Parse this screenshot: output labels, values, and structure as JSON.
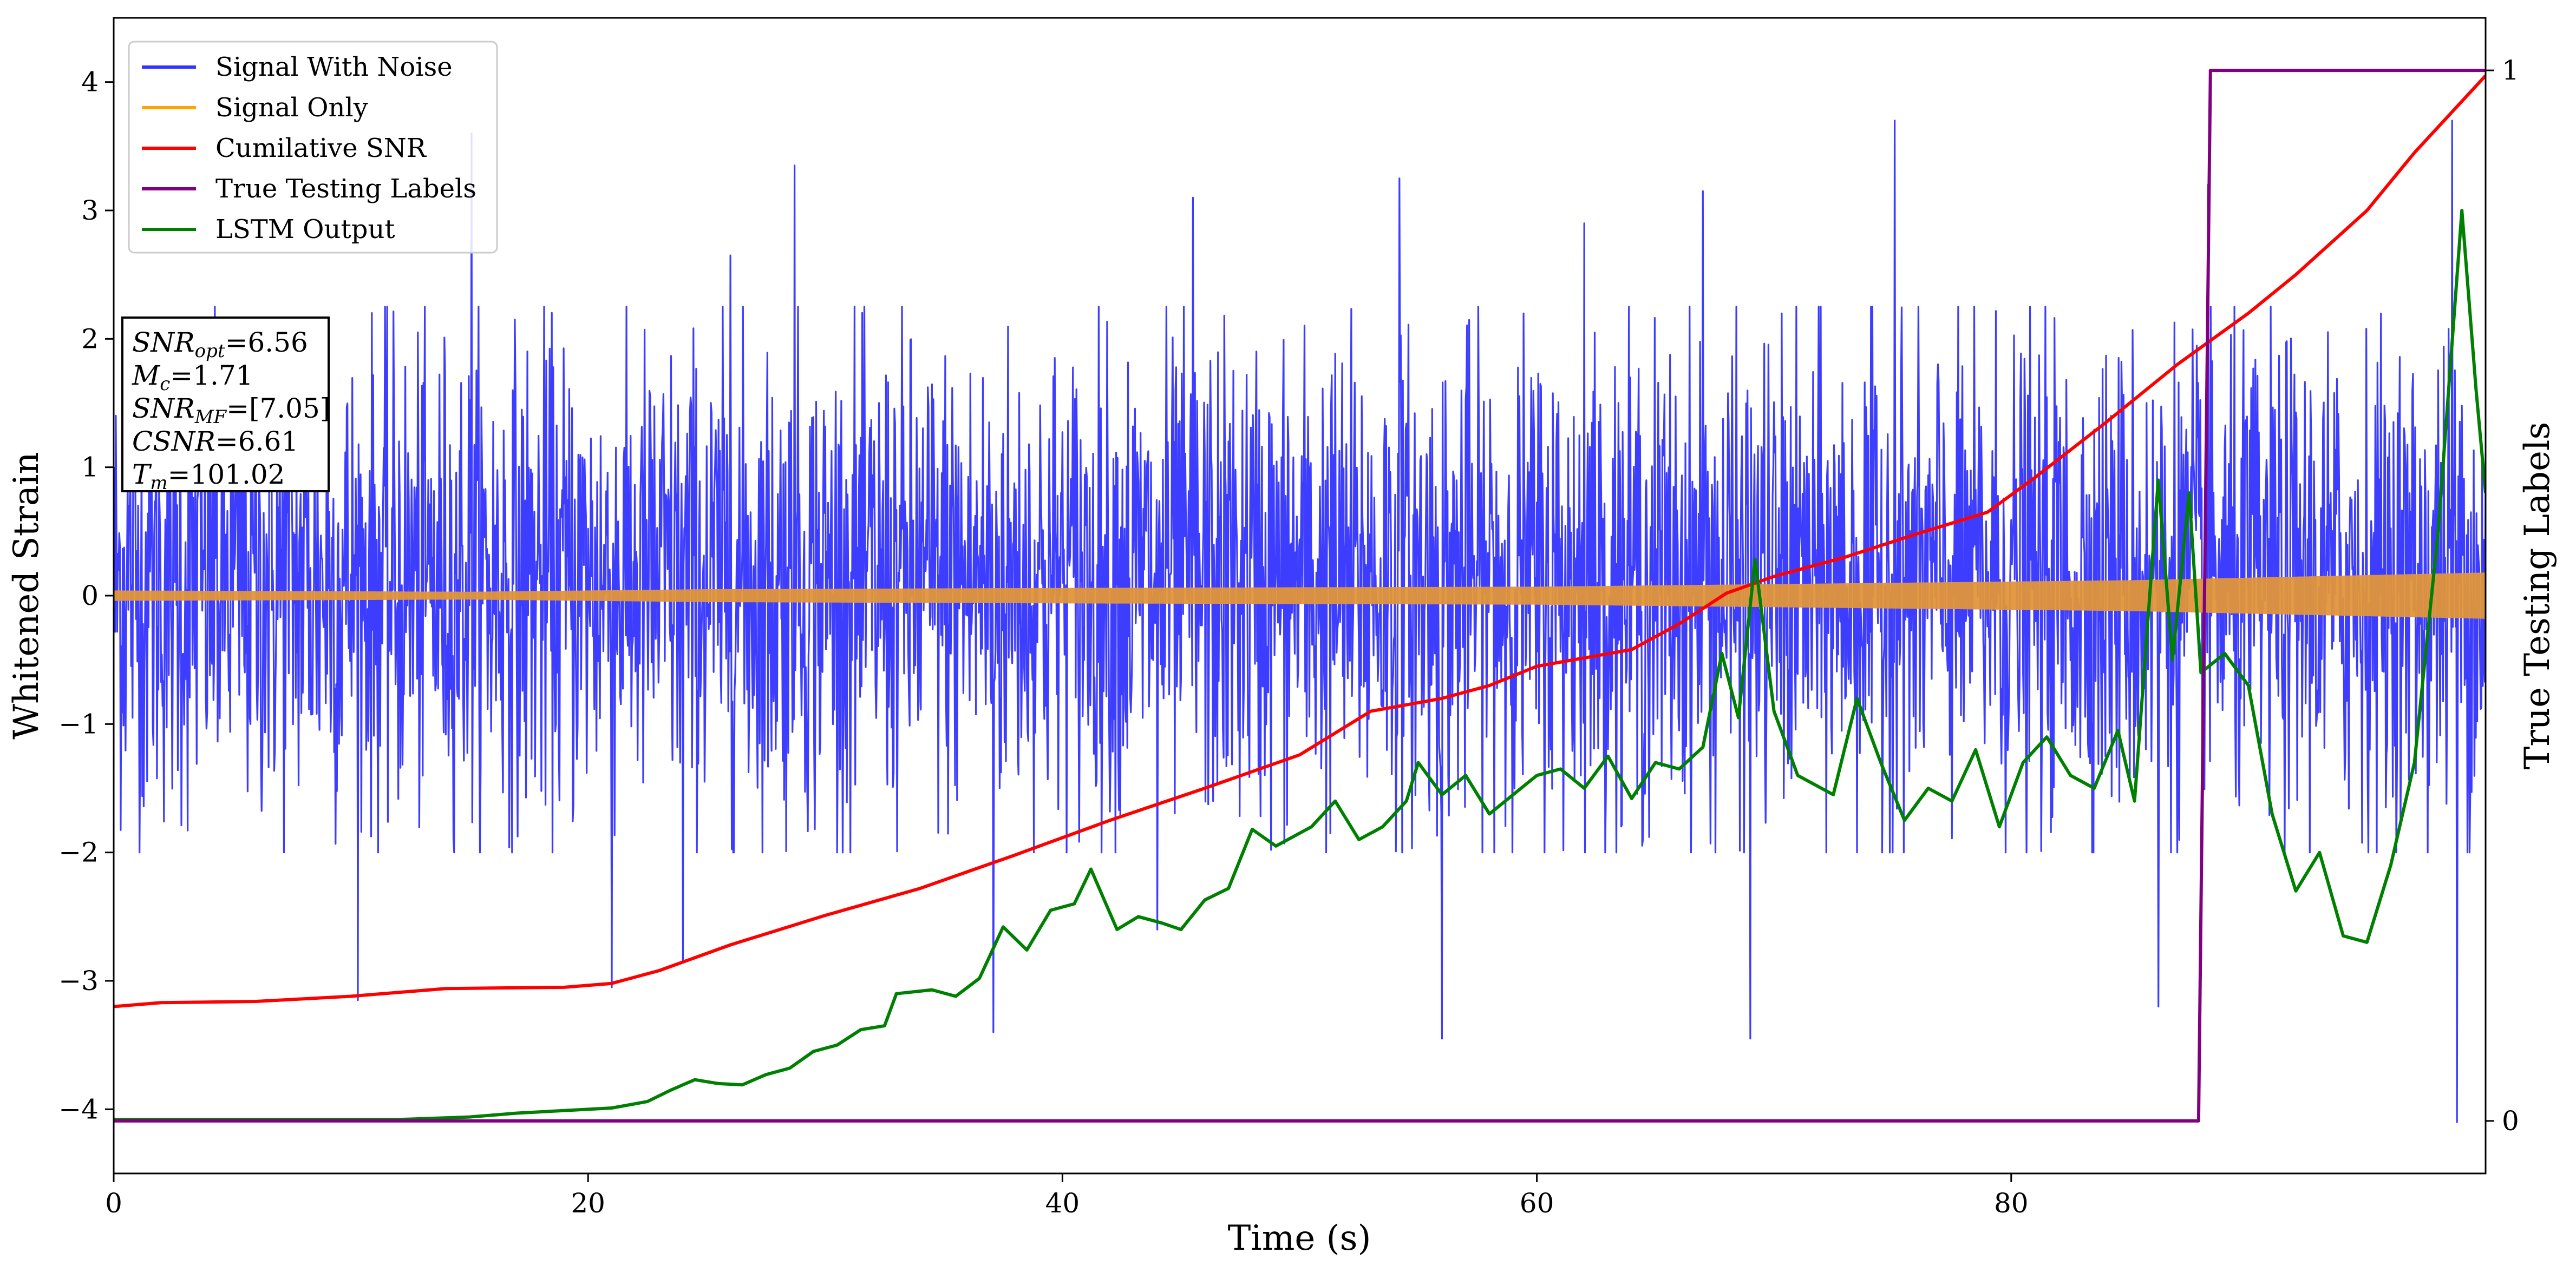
{
  "chart_data": {
    "type": "line",
    "title": "",
    "xlabel": "Time (s)",
    "ylabel": "Whitened Strain",
    "y2label": "True Testing Labels",
    "xlim": [
      0,
      100
    ],
    "ylim": [
      -4.5,
      4.5
    ],
    "y2lim": [
      -0.05,
      1.05
    ],
    "x_ticks": [
      0,
      20,
      40,
      60,
      80
    ],
    "y_ticks": [
      -4,
      -3,
      -2,
      -1,
      0,
      1,
      2,
      3,
      4
    ],
    "y2_ticks": [
      0,
      1
    ],
    "grid": false,
    "legend": {
      "position": "upper-left",
      "entries": [
        {
          "label": "Signal With Noise",
          "color": "#3333ff"
        },
        {
          "label": "Signal Only",
          "color": "#ffa500"
        },
        {
          "label": "Cumilative SNR",
          "color": "#ff0000"
        },
        {
          "label": "True Testing Labels",
          "color": "#800080"
        },
        {
          "label": "LSTM Output",
          "color": "#008000"
        }
      ]
    },
    "annotation": [
      {
        "base": "SNR",
        "sub": "opt",
        "text": "=6.56"
      },
      {
        "base": "M",
        "sub": "c",
        "text": "=1.71"
      },
      {
        "base": "SNR",
        "sub": "MF",
        "text": "=[7.05]"
      },
      {
        "base": "CSNR",
        "sub": "",
        "text": "=6.61"
      },
      {
        "base": "T",
        "sub": "m",
        "text": "=101.02"
      }
    ],
    "series": [
      {
        "name": "Signal With Noise",
        "color": "#3333ff",
        "style": "noise",
        "typical_range": [
          -1.6,
          1.8
        ],
        "notable_peaks": [
          [
            15.1,
            3.6
          ],
          [
            28.7,
            3.35
          ],
          [
            37.1,
            -3.4
          ],
          [
            44,
            -2.6
          ],
          [
            54.2,
            3.25
          ],
          [
            56,
            -3.45
          ],
          [
            69,
            -3.45
          ],
          [
            75.1,
            3.7
          ],
          [
            86.2,
            -3.2
          ],
          [
            98.6,
            3.7
          ],
          [
            98.8,
            -4.1
          ],
          [
            10.3,
            -3.15
          ],
          [
            21,
            -3.05
          ],
          [
            24,
            -2.85
          ],
          [
            45.5,
            3.1
          ],
          [
            88.3,
            3.2
          ],
          [
            26,
            2.65
          ],
          [
            62,
            2.9
          ],
          [
            67,
            3.15
          ]
        ]
      },
      {
        "name": "Signal Only",
        "color": "#ffa500",
        "style": "envelope",
        "envelope": [
          [
            0,
            0.04
          ],
          [
            15,
            0.03
          ],
          [
            25,
            0.05
          ],
          [
            40,
            0.06
          ],
          [
            60,
            0.07
          ],
          [
            70,
            0.09
          ],
          [
            85,
            0.12
          ],
          [
            95,
            0.16
          ],
          [
            100,
            0.18
          ]
        ]
      },
      {
        "name": "Cumilative SNR",
        "color": "#ff0000",
        "points": [
          [
            0,
            -3.2
          ],
          [
            2,
            -3.17
          ],
          [
            6,
            -3.16
          ],
          [
            10,
            -3.12
          ],
          [
            14,
            -3.06
          ],
          [
            19,
            -3.05
          ],
          [
            21,
            -3.02
          ],
          [
            23,
            -2.92
          ],
          [
            26,
            -2.72
          ],
          [
            30,
            -2.49
          ],
          [
            34,
            -2.28
          ],
          [
            38,
            -2.02
          ],
          [
            42,
            -1.75
          ],
          [
            46,
            -1.5
          ],
          [
            50,
            -1.24
          ],
          [
            53,
            -0.9
          ],
          [
            56,
            -0.8
          ],
          [
            58,
            -0.7
          ],
          [
            60,
            -0.55
          ],
          [
            64,
            -0.42
          ],
          [
            66,
            -0.22
          ],
          [
            68,
            0.02
          ],
          [
            70,
            0.15
          ],
          [
            73,
            0.3
          ],
          [
            76,
            0.48
          ],
          [
            79,
            0.65
          ],
          [
            81,
            0.92
          ],
          [
            84,
            1.35
          ],
          [
            87,
            1.8
          ],
          [
            90,
            2.2
          ],
          [
            92,
            2.5
          ],
          [
            95,
            3.0
          ],
          [
            97,
            3.45
          ],
          [
            100,
            4.05
          ]
        ]
      },
      {
        "name": "True Testing Labels",
        "color": "#800080",
        "axis": "right",
        "points": [
          [
            0,
            0
          ],
          [
            87.9,
            0
          ],
          [
            88.4,
            1
          ],
          [
            100,
            1
          ]
        ]
      },
      {
        "name": "LSTM Output",
        "color": "#008000",
        "points": [
          [
            0,
            -4.08
          ],
          [
            12,
            -4.08
          ],
          [
            15,
            -4.06
          ],
          [
            17,
            -4.03
          ],
          [
            19,
            -4.01
          ],
          [
            21,
            -3.99
          ],
          [
            22.5,
            -3.94
          ],
          [
            23.5,
            -3.85
          ],
          [
            24.5,
            -3.77
          ],
          [
            25.5,
            -3.8
          ],
          [
            26.5,
            -3.81
          ],
          [
            27.5,
            -3.73
          ],
          [
            28.5,
            -3.68
          ],
          [
            29.5,
            -3.55
          ],
          [
            30.5,
            -3.5
          ],
          [
            31.5,
            -3.38
          ],
          [
            32.5,
            -3.35
          ],
          [
            33,
            -3.1
          ],
          [
            34.5,
            -3.07
          ],
          [
            35.5,
            -3.12
          ],
          [
            36.5,
            -2.98
          ],
          [
            37.5,
            -2.58
          ],
          [
            38.5,
            -2.76
          ],
          [
            39.5,
            -2.45
          ],
          [
            40.5,
            -2.4
          ],
          [
            41.2,
            -2.13
          ],
          [
            42.3,
            -2.6
          ],
          [
            43.2,
            -2.5
          ],
          [
            44.2,
            -2.55
          ],
          [
            45,
            -2.6
          ],
          [
            46,
            -2.37
          ],
          [
            47,
            -2.28
          ],
          [
            48,
            -1.82
          ],
          [
            49,
            -1.95
          ],
          [
            50.5,
            -1.8
          ],
          [
            51.5,
            -1.6
          ],
          [
            52.5,
            -1.9
          ],
          [
            53.5,
            -1.8
          ],
          [
            54.5,
            -1.6
          ],
          [
            55,
            -1.3
          ],
          [
            56,
            -1.55
          ],
          [
            57,
            -1.4
          ],
          [
            58,
            -1.7
          ],
          [
            59,
            -1.55
          ],
          [
            60,
            -1.4
          ],
          [
            61,
            -1.35
          ],
          [
            62,
            -1.5
          ],
          [
            63,
            -1.25
          ],
          [
            64,
            -1.58
          ],
          [
            65,
            -1.3
          ],
          [
            66,
            -1.35
          ],
          [
            67,
            -1.18
          ],
          [
            67.8,
            -0.45
          ],
          [
            68.5,
            -0.95
          ],
          [
            69.2,
            0.28
          ],
          [
            70,
            -0.9
          ],
          [
            71,
            -1.4
          ],
          [
            72.5,
            -1.55
          ],
          [
            73.5,
            -0.8
          ],
          [
            74.5,
            -1.3
          ],
          [
            75.5,
            -1.75
          ],
          [
            76.5,
            -1.5
          ],
          [
            77.5,
            -1.6
          ],
          [
            78.5,
            -1.2
          ],
          [
            79.5,
            -1.8
          ],
          [
            80.5,
            -1.3
          ],
          [
            81.5,
            -1.1
          ],
          [
            82.5,
            -1.4
          ],
          [
            83.5,
            -1.5
          ],
          [
            84.5,
            -1.05
          ],
          [
            85.2,
            -1.6
          ],
          [
            86.2,
            0.9
          ],
          [
            86.8,
            -0.5
          ],
          [
            87.5,
            0.8
          ],
          [
            88,
            -0.6
          ],
          [
            89,
            -0.45
          ],
          [
            90,
            -0.7
          ],
          [
            91,
            -1.7
          ],
          [
            92,
            -2.3
          ],
          [
            93,
            -2.0
          ],
          [
            94,
            -2.65
          ],
          [
            95,
            -2.7
          ],
          [
            96,
            -2.1
          ],
          [
            97,
            -1.3
          ],
          [
            98,
            0.5
          ],
          [
            99,
            3.0
          ],
          [
            99.6,
            1.6
          ],
          [
            100,
            0.8
          ]
        ]
      }
    ]
  }
}
